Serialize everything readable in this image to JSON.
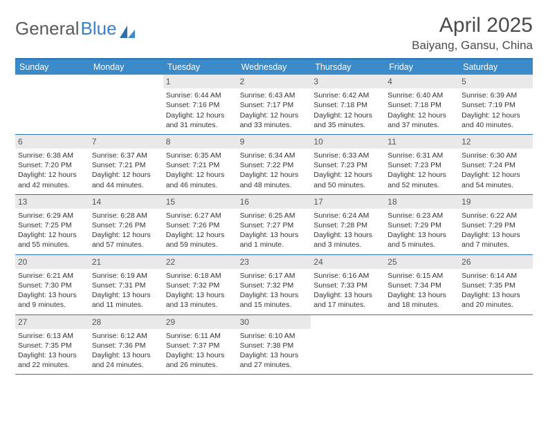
{
  "logo": {
    "text_gray": "General",
    "text_blue": "Blue"
  },
  "title": "April 2025",
  "location": "Baiyang, Gansu, China",
  "colors": {
    "header_bar": "#3b8bca",
    "border": "#2b74b8",
    "daynum_bg": "#e9e9e9",
    "text": "#333333",
    "title_text": "#4a4a4a"
  },
  "days_of_week": [
    "Sunday",
    "Monday",
    "Tuesday",
    "Wednesday",
    "Thursday",
    "Friday",
    "Saturday"
  ],
  "weeks": [
    [
      null,
      null,
      {
        "n": "1",
        "sr": "6:44 AM",
        "ss": "7:16 PM",
        "dl": "12 hours and 31 minutes."
      },
      {
        "n": "2",
        "sr": "6:43 AM",
        "ss": "7:17 PM",
        "dl": "12 hours and 33 minutes."
      },
      {
        "n": "3",
        "sr": "6:42 AM",
        "ss": "7:18 PM",
        "dl": "12 hours and 35 minutes."
      },
      {
        "n": "4",
        "sr": "6:40 AM",
        "ss": "7:18 PM",
        "dl": "12 hours and 37 minutes."
      },
      {
        "n": "5",
        "sr": "6:39 AM",
        "ss": "7:19 PM",
        "dl": "12 hours and 40 minutes."
      }
    ],
    [
      {
        "n": "6",
        "sr": "6:38 AM",
        "ss": "7:20 PM",
        "dl": "12 hours and 42 minutes."
      },
      {
        "n": "7",
        "sr": "6:37 AM",
        "ss": "7:21 PM",
        "dl": "12 hours and 44 minutes."
      },
      {
        "n": "8",
        "sr": "6:35 AM",
        "ss": "7:21 PM",
        "dl": "12 hours and 46 minutes."
      },
      {
        "n": "9",
        "sr": "6:34 AM",
        "ss": "7:22 PM",
        "dl": "12 hours and 48 minutes."
      },
      {
        "n": "10",
        "sr": "6:33 AM",
        "ss": "7:23 PM",
        "dl": "12 hours and 50 minutes."
      },
      {
        "n": "11",
        "sr": "6:31 AM",
        "ss": "7:23 PM",
        "dl": "12 hours and 52 minutes."
      },
      {
        "n": "12",
        "sr": "6:30 AM",
        "ss": "7:24 PM",
        "dl": "12 hours and 54 minutes."
      }
    ],
    [
      {
        "n": "13",
        "sr": "6:29 AM",
        "ss": "7:25 PM",
        "dl": "12 hours and 55 minutes."
      },
      {
        "n": "14",
        "sr": "6:28 AM",
        "ss": "7:26 PM",
        "dl": "12 hours and 57 minutes."
      },
      {
        "n": "15",
        "sr": "6:27 AM",
        "ss": "7:26 PM",
        "dl": "12 hours and 59 minutes."
      },
      {
        "n": "16",
        "sr": "6:25 AM",
        "ss": "7:27 PM",
        "dl": "13 hours and 1 minute."
      },
      {
        "n": "17",
        "sr": "6:24 AM",
        "ss": "7:28 PM",
        "dl": "13 hours and 3 minutes."
      },
      {
        "n": "18",
        "sr": "6:23 AM",
        "ss": "7:29 PM",
        "dl": "13 hours and 5 minutes."
      },
      {
        "n": "19",
        "sr": "6:22 AM",
        "ss": "7:29 PM",
        "dl": "13 hours and 7 minutes."
      }
    ],
    [
      {
        "n": "20",
        "sr": "6:21 AM",
        "ss": "7:30 PM",
        "dl": "13 hours and 9 minutes."
      },
      {
        "n": "21",
        "sr": "6:19 AM",
        "ss": "7:31 PM",
        "dl": "13 hours and 11 minutes."
      },
      {
        "n": "22",
        "sr": "6:18 AM",
        "ss": "7:32 PM",
        "dl": "13 hours and 13 minutes."
      },
      {
        "n": "23",
        "sr": "6:17 AM",
        "ss": "7:32 PM",
        "dl": "13 hours and 15 minutes."
      },
      {
        "n": "24",
        "sr": "6:16 AM",
        "ss": "7:33 PM",
        "dl": "13 hours and 17 minutes."
      },
      {
        "n": "25",
        "sr": "6:15 AM",
        "ss": "7:34 PM",
        "dl": "13 hours and 18 minutes."
      },
      {
        "n": "26",
        "sr": "6:14 AM",
        "ss": "7:35 PM",
        "dl": "13 hours and 20 minutes."
      }
    ],
    [
      {
        "n": "27",
        "sr": "6:13 AM",
        "ss": "7:35 PM",
        "dl": "13 hours and 22 minutes."
      },
      {
        "n": "28",
        "sr": "6:12 AM",
        "ss": "7:36 PM",
        "dl": "13 hours and 24 minutes."
      },
      {
        "n": "29",
        "sr": "6:11 AM",
        "ss": "7:37 PM",
        "dl": "13 hours and 26 minutes."
      },
      {
        "n": "30",
        "sr": "6:10 AM",
        "ss": "7:38 PM",
        "dl": "13 hours and 27 minutes."
      },
      null,
      null,
      null
    ]
  ],
  "labels": {
    "sunrise": "Sunrise:",
    "sunset": "Sunset:",
    "daylight": "Daylight:"
  }
}
